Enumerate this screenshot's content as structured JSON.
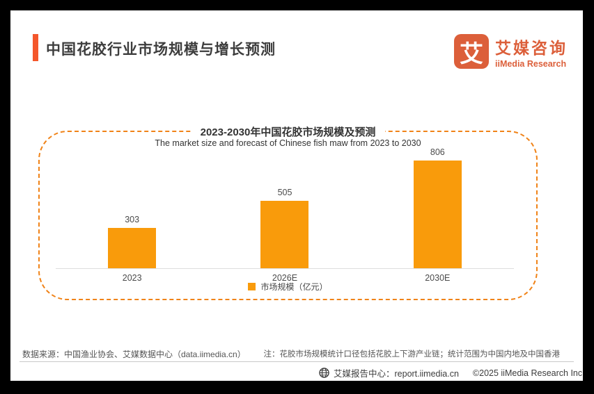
{
  "colors": {
    "accent_red_orange": "#F4572B",
    "brand_orange": "#DC5F3A",
    "bar_orange": "#F99B0B",
    "dashed_border": "#F08318"
  },
  "header": {
    "title": "中国花胶行业市场规模与增长预测",
    "logo": {
      "icon_char": "艾",
      "name_cn": "艾媒咨询",
      "name_en": "iiMedia Research"
    }
  },
  "chart_data": {
    "type": "bar",
    "title": "2023-2030年中国花胶市场规模及预测",
    "subtitle": "The market size and forecast of Chinese fish maw from 2023 to 2030",
    "categories": [
      "2023",
      "2026E",
      "2030E"
    ],
    "values": [
      303,
      505,
      806
    ],
    "unit": "亿元",
    "ylim": [
      0,
      860
    ],
    "grid": false,
    "legend_position": "bottom",
    "legend": [
      {
        "label": "市场规模（亿元）",
        "color": "#F99B0B"
      }
    ]
  },
  "footnotes": {
    "source": "数据来源：中国渔业协会、艾媒数据中心（data.iimedia.cn）",
    "note": "注：花胶市场规模统计口径包括花胶上下游产业链；统计范围为中国内地及中国香港"
  },
  "footer": {
    "report_center": "艾媒报告中心：report.iimedia.cn",
    "copyright": "©2025  iiMedia Research  Inc"
  }
}
